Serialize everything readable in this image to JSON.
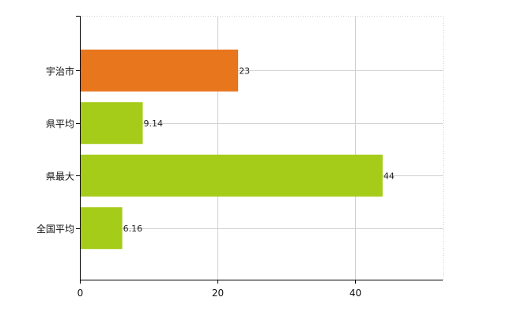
{
  "chart_data": {
    "type": "bar",
    "orientation": "horizontal",
    "categories": [
      "宇治市",
      "県平均",
      "県最大",
      "全国平均"
    ],
    "values": [
      23,
      9.14,
      44,
      6.16
    ],
    "data_labels": [
      "23",
      "9.14",
      "44",
      "6.16"
    ],
    "bar_colors": [
      "#e8761d",
      "#a6cc1a",
      "#a6cc1a",
      "#a6cc1a"
    ],
    "xlim": [
      0,
      52.75
    ],
    "x_ticks": [
      0,
      20,
      40
    ],
    "x_tick_labels": [
      "0",
      "20",
      "40"
    ],
    "grid": true,
    "grid_color": "#d0d0d0",
    "axis_color": "#000000",
    "title": "",
    "xlabel": "",
    "ylabel": ""
  }
}
